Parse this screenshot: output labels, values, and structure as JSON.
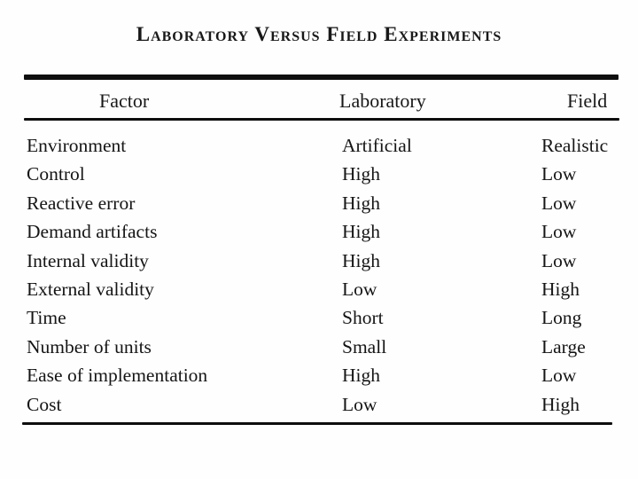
{
  "title": "Laboratory Versus Field Experiments",
  "table": {
    "columns": [
      "Factor",
      "Laboratory",
      "Field"
    ],
    "rows": [
      {
        "factor": "Environment",
        "laboratory": "Artificial",
        "field": "Realistic"
      },
      {
        "factor": "Control",
        "laboratory": "High",
        "field": "Low"
      },
      {
        "factor": "Reactive error",
        "laboratory": "High",
        "field": "Low"
      },
      {
        "factor": "Demand artifacts",
        "laboratory": "High",
        "field": "Low"
      },
      {
        "factor": "Internal validity",
        "laboratory": "High",
        "field": "Low"
      },
      {
        "factor": "External validity",
        "laboratory": "Low",
        "field": "High"
      },
      {
        "factor": "Time",
        "laboratory": "Short",
        "field": "Long"
      },
      {
        "factor": "Number of units",
        "laboratory": "Small",
        "field": "Large"
      },
      {
        "factor": "Ease of implementation",
        "laboratory": "High",
        "field": "Low"
      },
      {
        "factor": "Cost",
        "laboratory": "Low",
        "field": "High"
      }
    ]
  },
  "colors": {
    "background": "#fefefe",
    "ink": "#141414",
    "rule": "#0e0e0e"
  }
}
